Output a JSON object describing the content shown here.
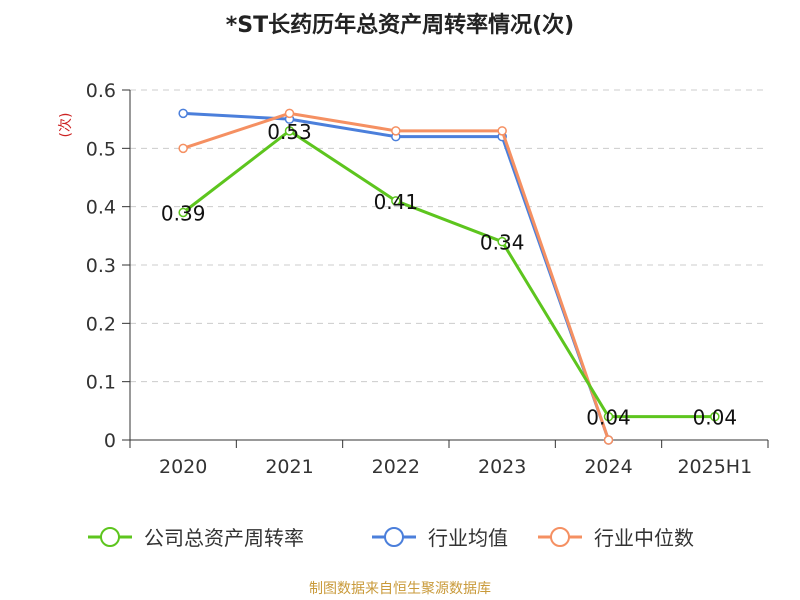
{
  "chart_data": {
    "type": "line",
    "title": "*ST长药历年总资产周转率情况(次)",
    "ylabel": "(次)",
    "xlabel": "",
    "categories": [
      "2020",
      "2021",
      "2022",
      "2023",
      "2024",
      "2025H1"
    ],
    "ylim": [
      0,
      0.6
    ],
    "yticks": [
      "0",
      "0.1",
      "0.2",
      "0.3",
      "0.4",
      "0.5",
      "0.6"
    ],
    "grid": true,
    "legend_position": "bottom",
    "series": [
      {
        "name": "公司总资产周转率",
        "color": "#5dc51e",
        "values": [
          0.39,
          0.53,
          0.41,
          0.34,
          0.04,
          0.04
        ],
        "labels": [
          "0.39",
          "0.53",
          "0.41",
          "0.34",
          "0.04",
          "0.04"
        ]
      },
      {
        "name": "行业均值",
        "color": "#4b7fdb",
        "values": [
          0.56,
          0.55,
          0.52,
          0.52,
          0.0,
          null
        ]
      },
      {
        "name": "行业中位数",
        "color": "#f59062",
        "values": [
          0.5,
          0.56,
          0.53,
          0.53,
          0.0,
          null
        ]
      }
    ],
    "source": "制图数据来自恒生聚源数据库",
    "source_color": "#c99a3a",
    "ylabel_color": "#cc2222"
  }
}
